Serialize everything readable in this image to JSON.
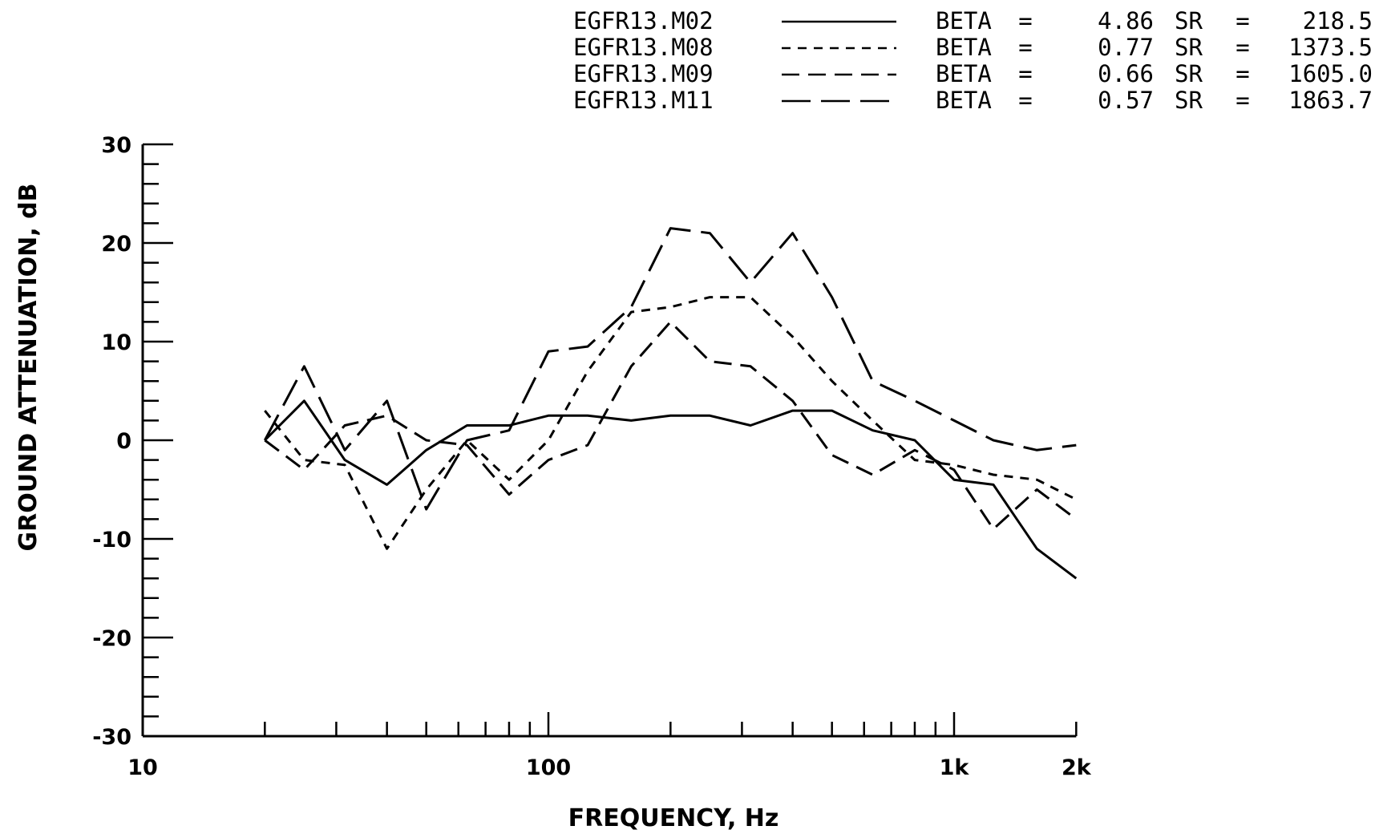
{
  "chart_data": {
    "type": "line",
    "xlabel": "FREQUENCY, Hz",
    "ylabel": "GROUND ATTENUATION, dB",
    "xscale": "log",
    "xlim": [
      10,
      2000
    ],
    "ylim": [
      -30,
      30
    ],
    "x_tick_labels": [
      {
        "value": 10,
        "label": "10"
      },
      {
        "value": 100,
        "label": "100"
      },
      {
        "value": 1000,
        "label": "1k"
      },
      {
        "value": 2000,
        "label": "2k"
      }
    ],
    "y_tick_labels": [
      {
        "value": 30,
        "label": "30"
      },
      {
        "value": 20,
        "label": "20"
      },
      {
        "value": 10,
        "label": "10"
      },
      {
        "value": 0,
        "label": "0"
      },
      {
        "value": -10,
        "label": "-10"
      },
      {
        "value": -20,
        "label": "-20"
      },
      {
        "value": -30,
        "label": "-30"
      }
    ],
    "legend_position": "top-right",
    "series": [
      {
        "name": "EGFR13.M02",
        "dash": "solid",
        "beta_label": "BETA",
        "beta": "4.86",
        "sr_label": "SR",
        "sr": "218.5",
        "x": [
          20,
          25,
          31.5,
          40,
          50,
          63,
          80,
          100,
          125,
          160,
          200,
          250,
          315,
          400,
          500,
          630,
          800,
          1000,
          1250,
          1600,
          2000
        ],
        "values": [
          0,
          4,
          -2,
          -4.5,
          -1,
          1.5,
          1.5,
          2.5,
          2.5,
          2,
          2.5,
          2.5,
          1.5,
          3,
          3,
          1,
          0,
          -4,
          -4.5,
          -11,
          -14
        ]
      },
      {
        "name": "EGFR13.M08",
        "dash": "short-dash",
        "beta_label": "BETA",
        "beta": "0.77",
        "sr_label": "SR",
        "sr": "1373.5",
        "x": [
          20,
          25,
          31.5,
          40,
          50,
          63,
          80,
          100,
          125,
          160,
          200,
          250,
          315,
          400,
          500,
          630,
          800,
          1000,
          1250,
          1600,
          2000
        ],
        "values": [
          3,
          -2,
          -2.5,
          -11,
          -5,
          0,
          -4,
          0,
          7,
          13,
          13.5,
          14.5,
          14.5,
          10.5,
          6,
          2,
          -2,
          -2.5,
          -3.5,
          -4,
          -6
        ]
      },
      {
        "name": "EGFR13.M09",
        "dash": "medium-dash",
        "beta_label": "BETA",
        "beta": "0.66",
        "sr_label": "SR",
        "sr": "1605.0",
        "x": [
          20,
          25,
          31.5,
          40,
          50,
          63,
          80,
          100,
          125,
          160,
          200,
          250,
          315,
          400,
          500,
          630,
          800,
          1000,
          1250,
          1600,
          2000
        ],
        "values": [
          0,
          -3,
          1.5,
          2.5,
          0,
          -0.5,
          -5.5,
          -2,
          -0.5,
          7.5,
          12,
          8,
          7.5,
          4,
          -1.5,
          -3.5,
          -1,
          -3,
          -9,
          -5,
          -8
        ]
      },
      {
        "name": "EGFR13.M11",
        "dash": "long-dash",
        "beta_label": "BETA",
        "beta": "0.57",
        "sr_label": "SR",
        "sr": "1863.7",
        "x": [
          20,
          25,
          31.5,
          40,
          50,
          63,
          80,
          100,
          125,
          160,
          200,
          250,
          315,
          400,
          500,
          630,
          800,
          1000,
          1250,
          1600,
          2000
        ],
        "values": [
          0,
          7.5,
          -1,
          4,
          -7,
          0,
          1,
          9,
          9.5,
          13.5,
          21.5,
          21,
          16,
          21,
          14.5,
          6,
          4,
          2,
          0,
          -1,
          -0.5
        ]
      }
    ]
  }
}
